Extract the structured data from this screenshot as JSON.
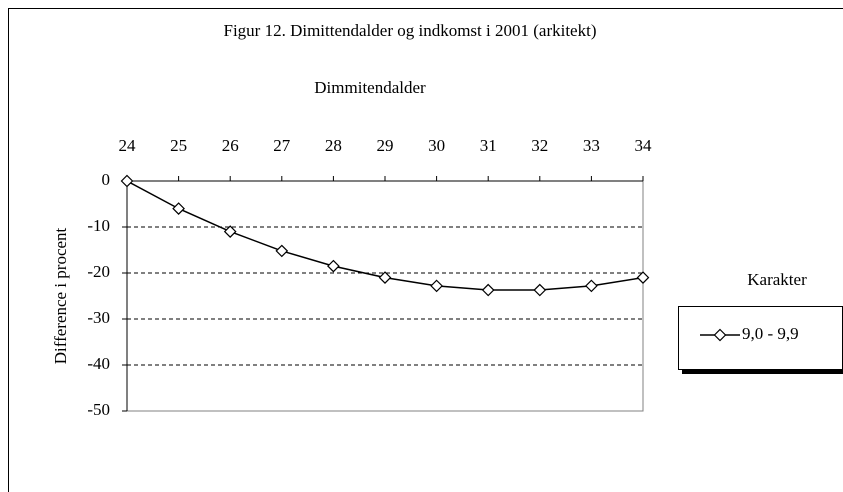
{
  "chart_data": {
    "type": "line",
    "title": "Figur 12. Dimittendalder og indkomst i 2001 (arkitekt)",
    "x_label": "Dimmitendalder",
    "y_label": "Difference i procent",
    "x": [
      24,
      25,
      26,
      27,
      28,
      29,
      30,
      31,
      32,
      33,
      34
    ],
    "xlim": [
      24,
      34
    ],
    "xticks": [
      24,
      25,
      26,
      27,
      28,
      29,
      30,
      31,
      32,
      33,
      34
    ],
    "ylim": [
      -50,
      0
    ],
    "yticks": [
      0,
      -10,
      -20,
      -30,
      -40,
      -50
    ],
    "grid": true,
    "legend_title": "Karakter",
    "legend": "right",
    "series": [
      {
        "name": "9,0 - 9,9",
        "color": "#000000",
        "values": [
          0,
          -6,
          -11,
          -15.2,
          -18.5,
          -21,
          -22.8,
          -23.7,
          -23.7,
          -22.8,
          -21
        ]
      }
    ]
  }
}
